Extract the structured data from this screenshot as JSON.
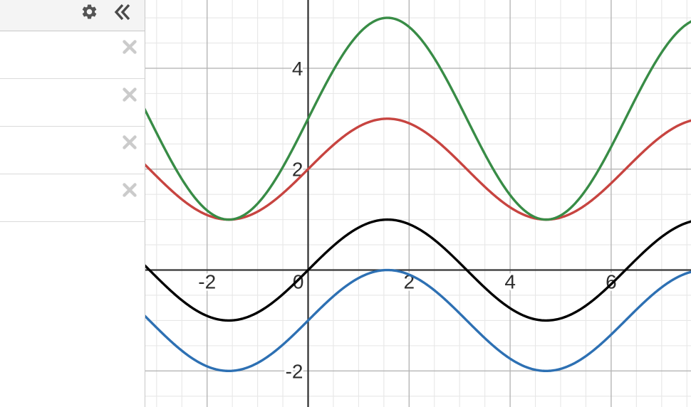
{
  "sidebar": {
    "header": {
      "settings_button": {
        "icon": "gear-icon"
      },
      "collapse_button": {
        "icon": "double-chevron-left-icon"
      }
    },
    "rows": [
      {
        "expression": "",
        "delete_icon": "x-close-icon"
      },
      {
        "expression": "",
        "delete_icon": "x-close-icon"
      },
      {
        "expression": "",
        "delete_icon": "x-close-icon"
      },
      {
        "expression": "",
        "delete_icon": "x-close-icon"
      }
    ]
  },
  "chart_data": {
    "type": "line",
    "title": "",
    "legend": false,
    "grid": true,
    "x_axis": {
      "visible_range": [
        -3.223,
        7.581
      ],
      "major_step": 2,
      "minor_step": 0.5,
      "tick_labels": [
        "-2",
        "0",
        "2",
        "4",
        "6"
      ]
    },
    "y_axis": {
      "visible_range": [
        -2.715,
        5.353
      ],
      "major_step": 2,
      "minor_step": 0.5,
      "tick_labels": [
        "4",
        "2",
        "-2"
      ]
    },
    "origin_label": "0",
    "series": [
      {
        "name": "y=sin(x)+2",
        "color_name": "red",
        "fn": "sin",
        "amplitude": 1,
        "vertical_shift": 2,
        "color": "#c74440"
      },
      {
        "name": "y=2sin(x)+3",
        "color_name": "green",
        "fn": "sin",
        "amplitude": 2,
        "vertical_shift": 3,
        "color": "#388c46"
      },
      {
        "name": "y=sin(x)",
        "color_name": "black",
        "fn": "sin",
        "amplitude": 1,
        "vertical_shift": 0,
        "color": "#000000"
      },
      {
        "name": "y=sin(x)-1",
        "color_name": "blue",
        "fn": "sin",
        "amplitude": 1,
        "vertical_shift": -1,
        "color": "#2d70b3"
      }
    ],
    "styles": {
      "axis_color": "#363636",
      "major_grid_color": "#b6b6b6",
      "minor_grid_color": "#e7e7e7",
      "label_color": "#2e2e2e",
      "label_halo_color": "#ffffff",
      "curve_width": 3.4,
      "label_font_size": 28
    }
  }
}
